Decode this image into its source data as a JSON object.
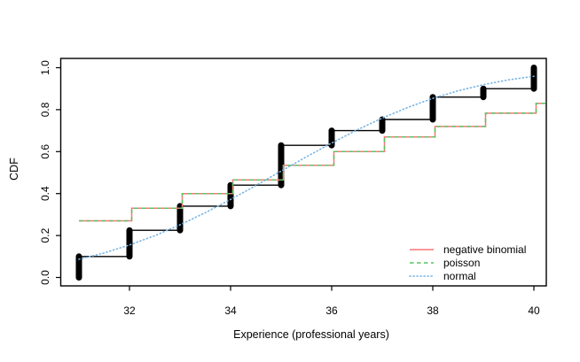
{
  "chart_data": {
    "type": "line",
    "title": "",
    "xlabel": "Experience (professional years)",
    "ylabel": "CDF",
    "xlim": [
      30.64,
      40.25
    ],
    "ylim": [
      -0.04,
      1.04
    ],
    "grid": false,
    "x_tick_labels": [
      "32",
      "34",
      "36",
      "38",
      "40"
    ],
    "y_tick_labels": [
      "0.0",
      "0.2",
      "0.4",
      "0.6",
      "0.8",
      "1.0"
    ],
    "series": [
      {
        "name": "empirical-cdf",
        "style": "step-with-thick-jumps",
        "color": "#000000",
        "x": [
          31,
          32,
          33,
          34,
          35,
          36,
          37,
          38,
          39,
          40
        ],
        "cdf": [
          0.1,
          0.225,
          0.34,
          0.44,
          0.63,
          0.7,
          0.753,
          0.86,
          0.9,
          1.0
        ]
      },
      {
        "name": "negative binomial",
        "style": "step-solid",
        "color": "#f8777c",
        "x": [
          31,
          32,
          33,
          34,
          35,
          36,
          37,
          38,
          39,
          40
        ],
        "cdf": [
          0.27,
          0.33,
          0.4,
          0.465,
          0.535,
          0.6,
          0.67,
          0.72,
          0.783,
          0.83
        ]
      },
      {
        "name": "poisson",
        "style": "step-dashed",
        "color": "#57c45f",
        "x": [
          31,
          32,
          33,
          34,
          35,
          36,
          37,
          38,
          39,
          40
        ],
        "cdf": [
          0.27,
          0.33,
          0.4,
          0.465,
          0.535,
          0.6,
          0.67,
          0.72,
          0.783,
          0.83
        ]
      },
      {
        "name": "normal",
        "style": "smooth-dotted",
        "color": "#76b4e4",
        "x": [
          31,
          31.5,
          32,
          32.5,
          33,
          33.5,
          34,
          34.5,
          35,
          35.5,
          36,
          36.5,
          37,
          37.5,
          38,
          38.5,
          39,
          39.5,
          40
        ],
        "y": [
          0.087,
          0.117,
          0.155,
          0.199,
          0.251,
          0.309,
          0.372,
          0.438,
          0.507,
          0.575,
          0.641,
          0.703,
          0.76,
          0.81,
          0.854,
          0.89,
          0.919,
          0.942,
          0.959
        ]
      }
    ],
    "legend": {
      "position": "bottom-right",
      "entries": [
        {
          "label": "negative binomial",
          "color": "#f8777c",
          "line_style": "solid"
        },
        {
          "label": "poisson",
          "color": "#57c45f",
          "line_style": "dashed"
        },
        {
          "label": "normal",
          "color": "#76b4e4",
          "line_style": "dotted"
        }
      ]
    }
  }
}
